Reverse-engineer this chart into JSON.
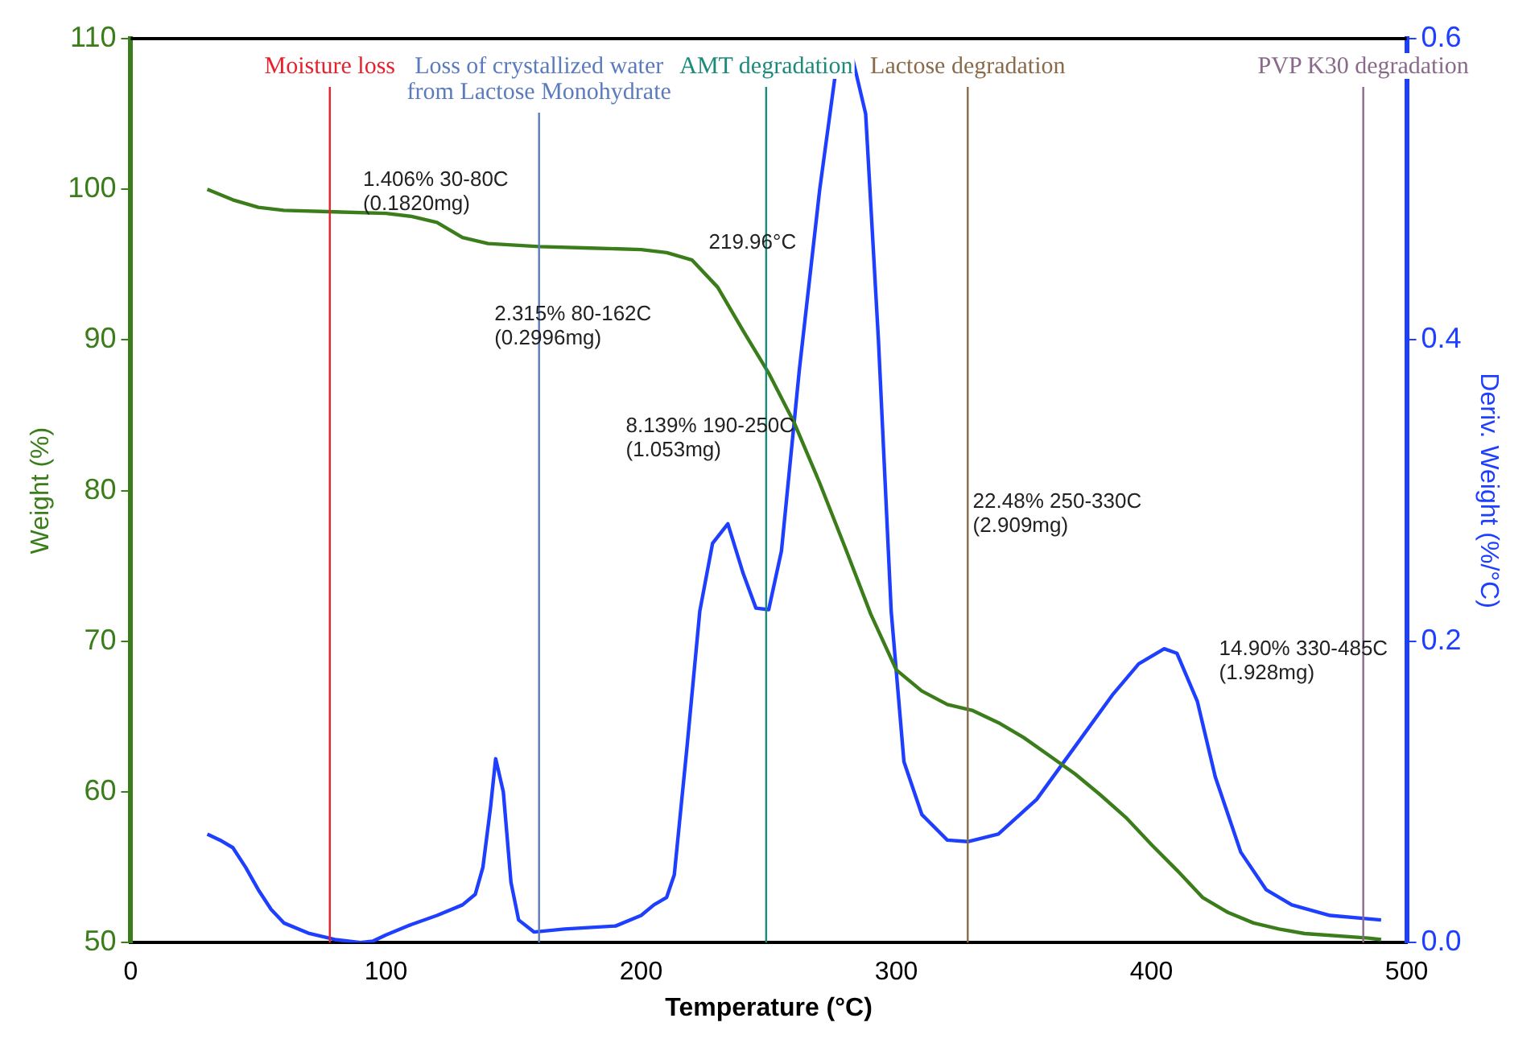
{
  "chart_data": {
    "type": "line",
    "xlabel": "Temperature (°C)",
    "ylabel": "Weight (%)",
    "y2label": "Deriv. Weight (%/°C)",
    "xlim": [
      0,
      500
    ],
    "xticks": [
      0,
      100,
      200,
      300,
      400,
      500
    ],
    "ylim": [
      50,
      110
    ],
    "yticks": [
      50,
      60,
      70,
      80,
      90,
      100,
      110
    ],
    "y2lim": [
      0,
      0.6
    ],
    "y2ticks": [
      {
        "value": 0,
        "label": "0.0"
      },
      0.2,
      0.4,
      0.6
    ],
    "grid": false,
    "legend": false,
    "marker": "none",
    "line_style": "solid",
    "series": [
      {
        "color": "#3a7d1a",
        "axis": "y",
        "x": [
          30,
          40,
          50,
          60,
          80,
          100,
          110,
          120,
          130,
          140,
          160,
          180,
          200,
          210,
          220,
          230,
          240,
          250,
          260,
          270,
          280,
          290,
          300,
          310,
          320,
          330,
          340,
          350,
          360,
          370,
          380,
          390,
          400,
          410,
          420,
          430,
          440,
          450,
          460,
          485,
          490
        ],
        "values": [
          100,
          99.3,
          98.8,
          98.6,
          98.5,
          98.4,
          98.2,
          97.8,
          96.8,
          96.4,
          96.2,
          96.1,
          96.0,
          95.8,
          95.3,
          93.5,
          90.6,
          87.8,
          84.5,
          80.5,
          76.2,
          71.8,
          68.1,
          66.7,
          65.8,
          65.4,
          64.6,
          63.6,
          62.4,
          61.2,
          59.8,
          58.3,
          56.5,
          54.8,
          53.0,
          52.0,
          51.3,
          50.9,
          50.6,
          50.3,
          50.2
        ]
      },
      {
        "color": "#1f3fff",
        "axis": "y2",
        "x": [
          30,
          35,
          40,
          45,
          50,
          55,
          60,
          70,
          80,
          90,
          95,
          100,
          110,
          120,
          130,
          135,
          138,
          141,
          143,
          146,
          149,
          152,
          158,
          170,
          190,
          200,
          205,
          210,
          213,
          218,
          223,
          228,
          234,
          240,
          245,
          250,
          255,
          262,
          270,
          276,
          283,
          288,
          293,
          298,
          303,
          310,
          320,
          328,
          340,
          355,
          370,
          385,
          395,
          405,
          410,
          418,
          425,
          435,
          445,
          455,
          470,
          490
        ],
        "values": [
          0.072,
          0.068,
          0.063,
          0.05,
          0.035,
          0.022,
          0.013,
          0.006,
          0.002,
          0.0,
          0.001,
          0.005,
          0.012,
          0.018,
          0.025,
          0.032,
          0.05,
          0.09,
          0.122,
          0.1,
          0.04,
          0.015,
          0.007,
          0.009,
          0.011,
          0.018,
          0.025,
          0.03,
          0.045,
          0.13,
          0.22,
          0.265,
          0.278,
          0.245,
          0.222,
          0.221,
          0.26,
          0.38,
          0.5,
          0.575,
          0.586,
          0.55,
          0.4,
          0.22,
          0.12,
          0.085,
          0.068,
          0.067,
          0.072,
          0.095,
          0.13,
          0.165,
          0.185,
          0.195,
          0.192,
          0.16,
          0.11,
          0.06,
          0.035,
          0.025,
          0.018,
          0.015
        ]
      }
    ],
    "ref_lines": [
      {
        "axis": "x",
        "value": 78,
        "label": "Moisture loss",
        "color": "#e8202a"
      },
      {
        "axis": "x",
        "value": 160,
        "label": "Loss of crystallized water\nfrom Lactose Monohydrate",
        "color": "#5b7bbf"
      },
      {
        "axis": "x",
        "value": 249,
        "label": "AMT degradation",
        "color": "#1a8a7a"
      },
      {
        "axis": "x",
        "value": 328,
        "label": "Lactose degradation",
        "color": "#8b6a4a"
      },
      {
        "axis": "x",
        "value": 483,
        "label": "PVP K30 degradation",
        "color": "#8a6a8a"
      }
    ],
    "annotations": [
      "1.406% 30-80C\n(0.1820mg)",
      "219.96°C",
      "2.315% 80-162C\n(0.2996mg)",
      "8.139% 190-250C\n(1.053mg)",
      "22.48% 250-330C\n(2.909mg)",
      "14.90% 330-485C\n(1.928mg)"
    ]
  }
}
